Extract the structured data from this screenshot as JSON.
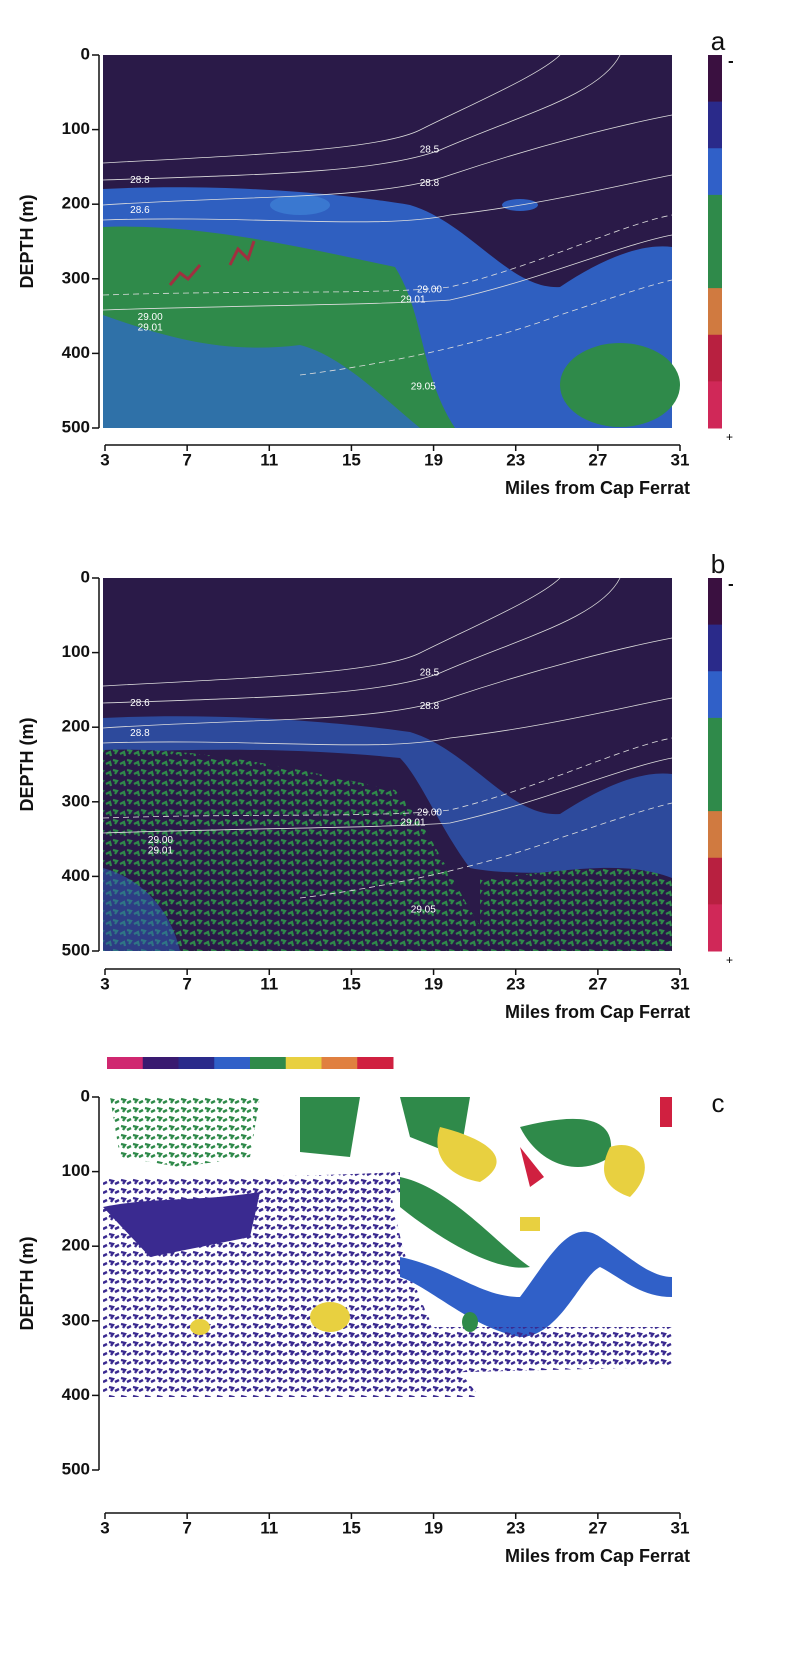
{
  "chart_data": [
    {
      "type": "heatmap",
      "panel_label": "a",
      "xlabel": "Miles from Cap Ferrat",
      "ylabel": "DEPTH (m)",
      "xlim": [
        3,
        31
      ],
      "xticks": [
        3,
        7,
        11,
        15,
        19,
        23,
        27,
        31
      ],
      "ylim": [
        500,
        0
      ],
      "yticks": [
        0,
        100,
        200,
        300,
        400,
        500
      ],
      "colorbar": {
        "colors": [
          "#3a1040",
          "#2a2a8a",
          "#3060c8",
          "#2f8a4a",
          "#2f8a4a",
          "#d07a40",
          "#b82040",
          "#d02858"
        ],
        "labels": [
          "-",
          "+"
        ]
      },
      "annotations": [
        {
          "text": "28.5",
          "x": 18.8,
          "y": 127
        },
        {
          "text": "28.8",
          "x": 4.7,
          "y": 168
        },
        {
          "text": "28.8",
          "x": 18.8,
          "y": 172
        },
        {
          "text": "28.6",
          "x": 4.7,
          "y": 208
        },
        {
          "text": "29.00",
          "x": 18.8,
          "y": 315
        },
        {
          "text": "29.01",
          "x": 18.0,
          "y": 328
        },
        {
          "text": "29.00",
          "x": 5.2,
          "y": 352
        },
        {
          "text": "29.01",
          "x": 5.2,
          "y": 366
        },
        {
          "text": "29.05",
          "x": 18.5,
          "y": 445
        }
      ]
    },
    {
      "type": "heatmap",
      "panel_label": "b",
      "xlabel": "Miles from Cap Ferrat",
      "ylabel": "DEPTH (m)",
      "xlim": [
        3,
        31
      ],
      "xticks": [
        3,
        7,
        11,
        15,
        19,
        23,
        27,
        31
      ],
      "ylim": [
        500,
        0
      ],
      "yticks": [
        0,
        100,
        200,
        300,
        400,
        500
      ],
      "colorbar": {
        "colors": [
          "#3a1040",
          "#2a2a8a",
          "#3060c8",
          "#2f8a4a",
          "#2f8a4a",
          "#d07a40",
          "#b82040",
          "#d02858"
        ],
        "labels": [
          "-",
          "+"
        ]
      },
      "annotations": [
        {
          "text": "28.5",
          "x": 18.8,
          "y": 127
        },
        {
          "text": "28.6",
          "x": 4.7,
          "y": 168
        },
        {
          "text": "28.8",
          "x": 18.8,
          "y": 172
        },
        {
          "text": "28.8",
          "x": 4.7,
          "y": 208
        },
        {
          "text": "29.00",
          "x": 18.8,
          "y": 315
        },
        {
          "text": "29.01",
          "x": 18.0,
          "y": 328
        },
        {
          "text": "29.00",
          "x": 5.7,
          "y": 352
        },
        {
          "text": "29.01",
          "x": 5.7,
          "y": 366
        },
        {
          "text": "29.05",
          "x": 18.5,
          "y": 445
        }
      ]
    },
    {
      "type": "scatter-section",
      "panel_label": "c",
      "xlabel": "Miles from Cap Ferrat",
      "ylabel": "DEPTH (m)",
      "xlim": [
        3,
        31
      ],
      "xticks": [
        3,
        7,
        11,
        15,
        19,
        23,
        27,
        31
      ],
      "ylim": [
        500,
        0
      ],
      "yticks": [
        0,
        100,
        200,
        300,
        400,
        500
      ],
      "colorbar": {
        "colors": [
          "#d02870",
          "#3a1a70",
          "#2a2a8a",
          "#3060c8",
          "#2f8a4a",
          "#e8d040",
          "#e08040",
          "#d02040"
        ]
      }
    }
  ]
}
